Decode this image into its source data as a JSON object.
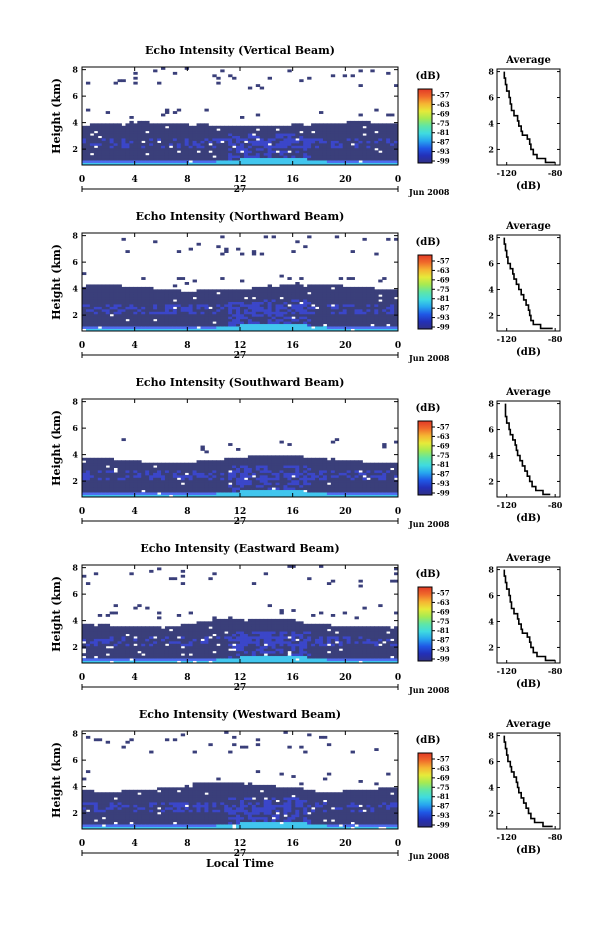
{
  "chart_data": [
    {
      "type": "heatmap",
      "title": "Echo Intensity (Vertical Beam)",
      "ylabel": "Height (km)",
      "x_ticks": [
        "0",
        "4",
        "8",
        "12",
        "16",
        "20",
        "0"
      ],
      "y_ticks": [
        "2",
        "4",
        "6",
        "8"
      ],
      "xlim": [
        0,
        24
      ],
      "ylim": [
        0.8,
        8.2
      ],
      "day_label": "27",
      "date_label": "Jun 2008",
      "colorbar": {
        "unit": "(dB)",
        "ticks": [
          "-57",
          "-63",
          "-69",
          "-75",
          "-81",
          "-87",
          "-93",
          "-99"
        ]
      },
      "cloud": {
        "base_top_km": 3.8,
        "upper_patch_top_km": 8.2
      },
      "average_profile": {
        "title": "Average",
        "xlabel": "(dB)",
        "x_ticks": [
          "-120",
          "-80"
        ],
        "xlim": [
          -128,
          -76
        ],
        "y_ticks": [
          "2",
          "4",
          "6",
          "8"
        ],
        "ylim": [
          0.8,
          8.2
        ],
        "height_km": [
          1.0,
          1.3,
          1.6,
          2.0,
          2.4,
          2.8,
          3.1,
          3.4,
          3.8,
          4.2,
          4.6,
          5.0,
          5.5,
          6.0,
          6.5,
          7.0,
          7.5,
          8.0
        ],
        "values_db": [
          -80,
          -88,
          -95,
          -98,
          -100,
          -101,
          -103,
          -107,
          -108,
          -110,
          -111,
          -114,
          -116,
          -117,
          -118,
          -120,
          -121,
          -122
        ]
      }
    },
    {
      "type": "heatmap",
      "title": "Echo Intensity (Northward Beam)",
      "ylabel": "Height (km)",
      "x_ticks": [
        "0",
        "4",
        "8",
        "12",
        "16",
        "20",
        "0"
      ],
      "y_ticks": [
        "2",
        "4",
        "6",
        "8"
      ],
      "xlim": [
        0,
        24
      ],
      "ylim": [
        0.8,
        8.2
      ],
      "day_label": "27",
      "date_label": "Jun 2008",
      "colorbar": {
        "unit": "(dB)",
        "ticks": [
          "-57",
          "-63",
          "-69",
          "-75",
          "-81",
          "-87",
          "-93",
          "-99"
        ]
      },
      "cloud": {
        "base_top_km": 4.0,
        "upper_patch_top_km": 8.0
      },
      "average_profile": {
        "title": "Average",
        "xlabel": "(dB)",
        "x_ticks": [
          "-120",
          "-80"
        ],
        "xlim": [
          -128,
          -76
        ],
        "y_ticks": [
          "2",
          "4",
          "6",
          "8"
        ],
        "ylim": [
          0.8,
          8.2
        ],
        "height_km": [
          1.0,
          1.3,
          1.6,
          2.0,
          2.4,
          2.8,
          3.2,
          3.6,
          4.0,
          4.4,
          4.8,
          5.2,
          5.6,
          6.0,
          6.5,
          7.0,
          7.5,
          8.0
        ],
        "values_db": [
          -82,
          -92,
          -98,
          -100,
          -101,
          -102,
          -104,
          -106,
          -108,
          -110,
          -112,
          -114,
          -115,
          -117,
          -119,
          -120,
          -121,
          -122
        ]
      }
    },
    {
      "type": "heatmap",
      "title": "Echo Intensity (Southward Beam)",
      "ylabel": "Height (km)",
      "x_ticks": [
        "0",
        "4",
        "8",
        "12",
        "16",
        "20",
        "0"
      ],
      "y_ticks": [
        "2",
        "4",
        "6",
        "8"
      ],
      "xlim": [
        0,
        24
      ],
      "ylim": [
        0.8,
        8.2
      ],
      "day_label": "27",
      "date_label": "Jun 2008",
      "colorbar": {
        "unit": "(dB)",
        "ticks": [
          "-57",
          "-63",
          "-69",
          "-75",
          "-81",
          "-87",
          "-93",
          "-99"
        ]
      },
      "cloud": {
        "base_top_km": 3.6,
        "upper_patch_top_km": 6.0
      },
      "average_profile": {
        "title": "Average",
        "xlabel": "(dB)",
        "x_ticks": [
          "-120",
          "-80"
        ],
        "xlim": [
          -128,
          -76
        ],
        "y_ticks": [
          "2",
          "4",
          "6",
          "8"
        ],
        "ylim": [
          0.8,
          8.2
        ],
        "height_km": [
          1.0,
          1.3,
          1.6,
          2.0,
          2.4,
          2.8,
          3.2,
          3.6,
          4.0,
          4.4,
          4.8,
          5.2,
          5.6,
          6.0,
          6.5,
          7.0,
          7.5,
          8.0
        ],
        "values_db": [
          -84,
          -90,
          -96,
          -99,
          -101,
          -103,
          -105,
          -107,
          -109,
          -111,
          -112,
          -113,
          -115,
          -117,
          -118,
          -120,
          -121,
          -121
        ]
      }
    },
    {
      "type": "heatmap",
      "title": "Echo Intensity (Eastward Beam)",
      "ylabel": "Height (km)",
      "x_ticks": [
        "0",
        "4",
        "8",
        "12",
        "16",
        "20",
        "0"
      ],
      "y_ticks": [
        "2",
        "4",
        "6",
        "8"
      ],
      "xlim": [
        0,
        24
      ],
      "ylim": [
        0.8,
        8.2
      ],
      "day_label": "27",
      "date_label": "Jun 2008",
      "colorbar": {
        "unit": "(dB)",
        "ticks": [
          "-57",
          "-63",
          "-69",
          "-75",
          "-81",
          "-87",
          "-93",
          "-99"
        ]
      },
      "cloud": {
        "base_top_km": 3.8,
        "upper_patch_top_km": 8.2
      },
      "average_profile": {
        "title": "Average",
        "xlabel": "(dB)",
        "x_ticks": [
          "-120",
          "-80"
        ],
        "xlim": [
          -128,
          -76
        ],
        "y_ticks": [
          "2",
          "4",
          "6",
          "8"
        ],
        "ylim": [
          0.8,
          8.2
        ],
        "height_km": [
          1.0,
          1.3,
          1.6,
          2.0,
          2.4,
          2.8,
          3.1,
          3.4,
          3.8,
          4.2,
          4.6,
          5.0,
          5.5,
          6.0,
          6.5,
          7.0,
          7.5,
          8.0
        ],
        "values_db": [
          -80,
          -88,
          -95,
          -98,
          -100,
          -101,
          -103,
          -107,
          -108,
          -110,
          -111,
          -114,
          -116,
          -117,
          -118,
          -120,
          -121,
          -122
        ]
      }
    },
    {
      "type": "heatmap",
      "title": "Echo Intensity (Westward Beam)",
      "ylabel": "Height (km)",
      "xlabel": "Local Time",
      "x_ticks": [
        "0",
        "4",
        "8",
        "12",
        "16",
        "20",
        "0"
      ],
      "y_ticks": [
        "2",
        "4",
        "6",
        "8"
      ],
      "xlim": [
        0,
        24
      ],
      "ylim": [
        0.8,
        8.2
      ],
      "day_label": "27",
      "date_label": "Jun 2008",
      "colorbar": {
        "unit": "(dB)",
        "ticks": [
          "-57",
          "-63",
          "-69",
          "-75",
          "-81",
          "-87",
          "-93",
          "-99"
        ]
      },
      "cloud": {
        "base_top_km": 3.9,
        "upper_patch_top_km": 8.2
      },
      "average_profile": {
        "title": "Average",
        "xlabel": "(dB)",
        "x_ticks": [
          "-120",
          "-80"
        ],
        "xlim": [
          -128,
          -76
        ],
        "y_ticks": [
          "2",
          "4",
          "6",
          "8"
        ],
        "ylim": [
          0.8,
          8.2
        ],
        "height_km": [
          1.0,
          1.3,
          1.6,
          2.0,
          2.4,
          2.8,
          3.2,
          3.6,
          4.0,
          4.4,
          4.8,
          5.2,
          5.6,
          6.0,
          6.5,
          7.0,
          7.5,
          8.0
        ],
        "values_db": [
          -82,
          -90,
          -97,
          -100,
          -102,
          -104,
          -106,
          -108,
          -110,
          -111,
          -112,
          -114,
          -116,
          -117,
          -119,
          -120,
          -121,
          -122
        ]
      }
    }
  ],
  "colors": {
    "cloud_dark": "#3a3f7a",
    "cloud_blue": "#3b46c9",
    "cloud_bright": "#4f6cf0",
    "near_ground": "#41c6ee",
    "colorbar_stops": [
      "#313184",
      "#2330b8",
      "#1f58e6",
      "#27a6ef",
      "#3fdbe0",
      "#5fe6a6",
      "#a6ea52",
      "#e6ea3a",
      "#f5b532",
      "#f06a2b",
      "#e23a26"
    ]
  }
}
